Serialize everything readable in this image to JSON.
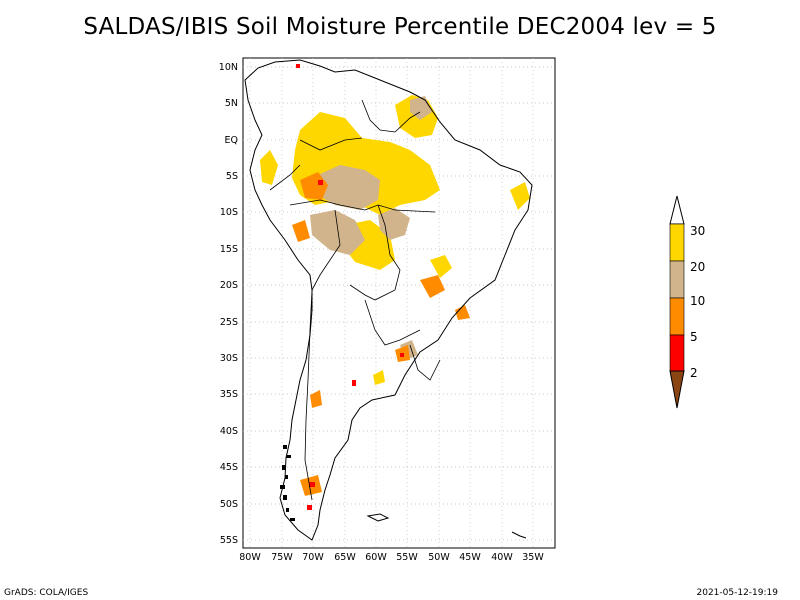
{
  "title": "SALDAS/IBIS Soil Moisture Percentile DEC2004 lev = 5",
  "map": {
    "lon_range": [
      -80,
      -32
    ],
    "lat_range": [
      -56,
      12
    ],
    "x_ticks": [
      "80W",
      "75W",
      "70W",
      "65W",
      "60W",
      "55W",
      "50W",
      "45W",
      "40W",
      "35W"
    ],
    "y_ticks": [
      "10N",
      "5N",
      "EQ",
      "5S",
      "10S",
      "15S",
      "20S",
      "25S",
      "30S",
      "35S",
      "40S",
      "45S",
      "50S",
      "55S"
    ],
    "grid": "dotted"
  },
  "colorbar": {
    "labels": [
      "2",
      "5",
      "10",
      "20",
      "30"
    ],
    "colors": [
      "#8b4513",
      "#ff0000",
      "#ff8c00",
      "#d2b48c",
      "#ffd700",
      "#ffffff"
    ]
  },
  "footer_left": "GrADS: COLA/IGES",
  "footer_right": "2021-05-12-19:19"
}
